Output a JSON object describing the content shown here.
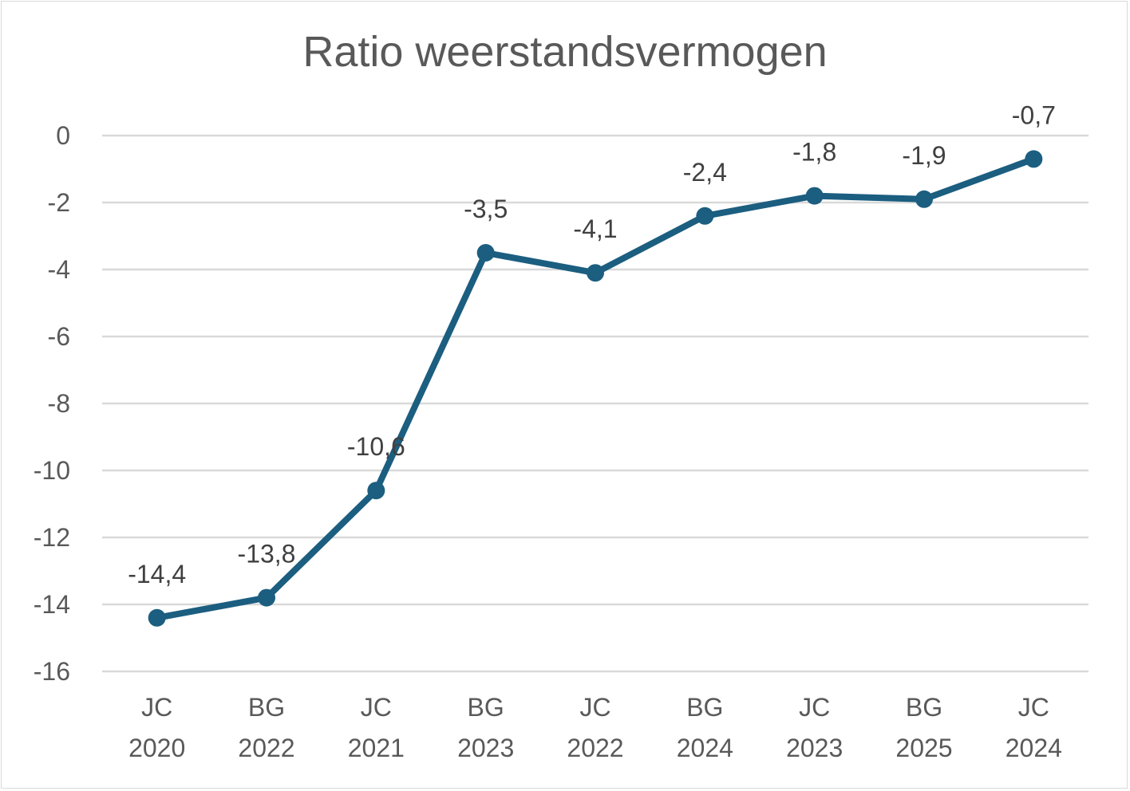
{
  "chart_data": {
    "type": "line",
    "title": "Ratio weerstandsvermogen",
    "xlabel": "",
    "ylabel": "",
    "categories": [
      [
        "JC",
        "2020"
      ],
      [
        "BG",
        "2022"
      ],
      [
        "JC",
        "2021"
      ],
      [
        "BG",
        "2023"
      ],
      [
        "JC",
        "2022"
      ],
      [
        "BG",
        "2024"
      ],
      [
        "JC",
        "2023"
      ],
      [
        "BG",
        "2025"
      ],
      [
        "JC",
        "2024"
      ]
    ],
    "series": [
      {
        "values": [
          -14.4,
          -13.8,
          -10.6,
          -3.5,
          -4.1,
          -2.4,
          -1.8,
          -1.9,
          -0.7
        ],
        "labels": [
          "-14,4",
          "-13,8",
          "-10,6",
          "-3,5",
          "-4,1",
          "-2,4",
          "-1,8",
          "-1,9",
          "-0,7"
        ],
        "color": "#1b5e80"
      }
    ],
    "ylim": [
      -16,
      0
    ],
    "yticks": [
      0,
      -2,
      -4,
      -6,
      -8,
      -10,
      -12,
      -14,
      -16
    ],
    "ytick_labels": [
      "0",
      "-2",
      "-4",
      "-6",
      "-8",
      "-10",
      "-12",
      "-14",
      "-16"
    ],
    "grid": true,
    "legend": "none",
    "data_labels": "above"
  },
  "colors": {
    "line": "#1b5e80",
    "grid": "#d9d9d9",
    "text": "#595959"
  }
}
